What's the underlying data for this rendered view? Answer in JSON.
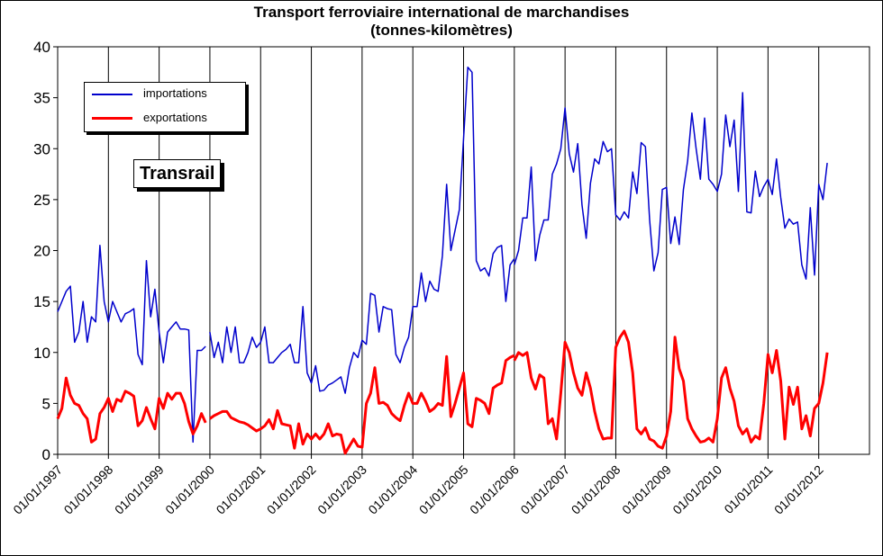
{
  "chart_data": {
    "type": "line",
    "title": "Transport ferroviaire international de marchandises",
    "subtitle": "(tonnes-kilomètres)",
    "badge": "Transrail",
    "x_tick_labels": [
      "01/01/1997",
      "01/01/1998",
      "01/01/1999",
      "01/01/2000",
      "01/01/2001",
      "01/01/2002",
      "01/01/2003",
      "01/01/2004",
      "01/01/2005",
      "01/01/2006",
      "01/01/2007",
      "01/01/2008",
      "01/01/2009",
      "01/01/2010",
      "01/01/2011",
      "01/01/2012"
    ],
    "y_tick_labels": [
      "0",
      "5",
      "10",
      "15",
      "20",
      "25",
      "30",
      "35",
      "40"
    ],
    "ylim": [
      0,
      40
    ],
    "xlim": [
      "1997-01-01",
      "2012-12-01"
    ],
    "legend_position": "top-left",
    "grid": "vertical",
    "series": [
      {
        "name": "importations",
        "color": "#0000cc",
        "segments": [
          {
            "start": "1997-01",
            "values": [
              14,
              15,
              16,
              16.5,
              11,
              12,
              15,
              11,
              13.5,
              13,
              20.5,
              15,
              13,
              15,
              14,
              13,
              13.8,
              14,
              14.3,
              9.8,
              8.8,
              19,
              13.5,
              16.2,
              12,
              9,
              12,
              12.5,
              13,
              12.3,
              12.3,
              12.2,
              1.2,
              10.2,
              10.2,
              10.6
            ]
          },
          {
            "start": "2000-01",
            "values": [
              12,
              9.5,
              11,
              9,
              12.5,
              10,
              12.5,
              9,
              9,
              10,
              11.5,
              10.5,
              11,
              12.5,
              9,
              9,
              9.5,
              10,
              10.3,
              10.8,
              9,
              9,
              14.5,
              8,
              7,
              8.7,
              6.2,
              6.3,
              6.8,
              7,
              7.3,
              7.6,
              6,
              8.5,
              10,
              9.5,
              11.2,
              10.8,
              15.8,
              15.6,
              12,
              14.5,
              14.3,
              14.2,
              9.8,
              9,
              10.5,
              11.5,
              14.5,
              14.5,
              17.8,
              15,
              17,
              16.2,
              16,
              19.5,
              26.5,
              20,
              22,
              24,
              31,
              38,
              37.5,
              19,
              18,
              18.3,
              17.5,
              19.7,
              20.3,
              20.5,
              15,
              18.6,
              19.2
            ]
          },
          {
            "start": "2006-01",
            "values": [
              18.6,
              20,
              23.2,
              23.2,
              28.2,
              19,
              21.5,
              23,
              23,
              27.5,
              28.5,
              30,
              34,
              29.5,
              27.7,
              30.5,
              24.5,
              21.2,
              26.6,
              29,
              28.5,
              30.7,
              29.7,
              30,
              23.5,
              23,
              23.8,
              23.2,
              27.7,
              25.6,
              30.6,
              30.2,
              23,
              18,
              19.8,
              26,
              26.2,
              20.7,
              23.3,
              20.6,
              26,
              28.8,
              33.5,
              30,
              27,
              33,
              27,
              26.5,
              25.8,
              27.5,
              33.3,
              30.2,
              32.8,
              25.8,
              35.5,
              23.8,
              23.7,
              27.8,
              25.3,
              26.3,
              27,
              25.5,
              29,
              25.2,
              22.2,
              23.1,
              22.6,
              22.8,
              18.6,
              17.2,
              24.2,
              17.6,
              26.5,
              25,
              28.6
            ]
          }
        ]
      },
      {
        "name": "exportations",
        "color": "#ff0000",
        "segments": [
          {
            "start": "1997-01",
            "values": [
              3.5,
              4.5,
              7.5,
              5.8,
              5,
              4.8,
              4,
              3.5,
              1.2,
              1.5,
              4,
              4.6,
              5.5,
              4.2,
              5.4,
              5.2,
              6.2,
              6,
              5.7,
              2.8,
              3.3,
              4.6,
              3.5,
              2.5,
              5.5,
              4.5,
              6,
              5.4,
              6,
              6,
              5,
              3.2,
              2,
              2.8,
              4,
              3.1
            ]
          },
          {
            "start": "2000-01",
            "values": [
              3.5,
              3.8,
              4,
              4.2,
              4.2,
              3.6,
              3.4,
              3.2,
              3.1,
              2.9,
              2.6,
              2.3,
              2.5,
              2.8,
              3.4,
              2.5,
              4.3,
              3,
              2.9,
              2.8,
              0.6,
              3,
              1,
              2,
              1.5,
              2,
              1.5,
              2,
              3,
              1.8,
              2,
              1.9,
              0.1,
              0.8,
              1.5,
              0.8,
              0.7,
              5,
              6,
              8.5,
              5,
              5.1,
              4.8,
              4,
              3.6,
              3.3,
              4.8,
              6,
              5,
              5,
              6,
              5.2,
              4.2,
              4.5,
              5,
              4.8,
              9.6,
              3.7,
              5,
              6.5,
              8,
              3,
              2.7,
              5.5,
              5.3,
              5,
              4,
              6.5,
              6.8,
              7,
              9.2,
              9.5,
              9.7
            ]
          },
          {
            "start": "2006-01",
            "values": [
              9.2,
              10,
              9.7,
              10,
              7.5,
              6.4,
              7.8,
              7.5,
              3,
              3.5,
              1.5,
              6,
              11,
              10,
              8,
              6.5,
              5.8,
              8,
              6.5,
              4.2,
              2.5,
              1.5,
              1.6,
              1.6,
              10.5,
              11.5,
              12.1,
              11,
              8,
              2.5,
              2,
              2.6,
              1.5,
              1.3,
              0.8,
              0.6,
              1.8,
              4.2,
              11.5,
              8.4,
              7.2,
              3.5,
              2.5,
              1.8,
              1.2,
              1.3,
              1.6,
              1.2,
              3.5,
              7.5,
              8.5,
              6.5,
              5.2,
              2.8,
              2,
              2.5,
              1.2,
              1.8,
              1.5,
              5,
              9.8,
              8,
              10.2,
              7.2,
              1.5,
              6.6,
              4.9,
              6.6,
              2.5,
              3.8,
              1.8,
              4.5,
              5,
              7,
              10
            ]
          }
        ]
      }
    ]
  }
}
